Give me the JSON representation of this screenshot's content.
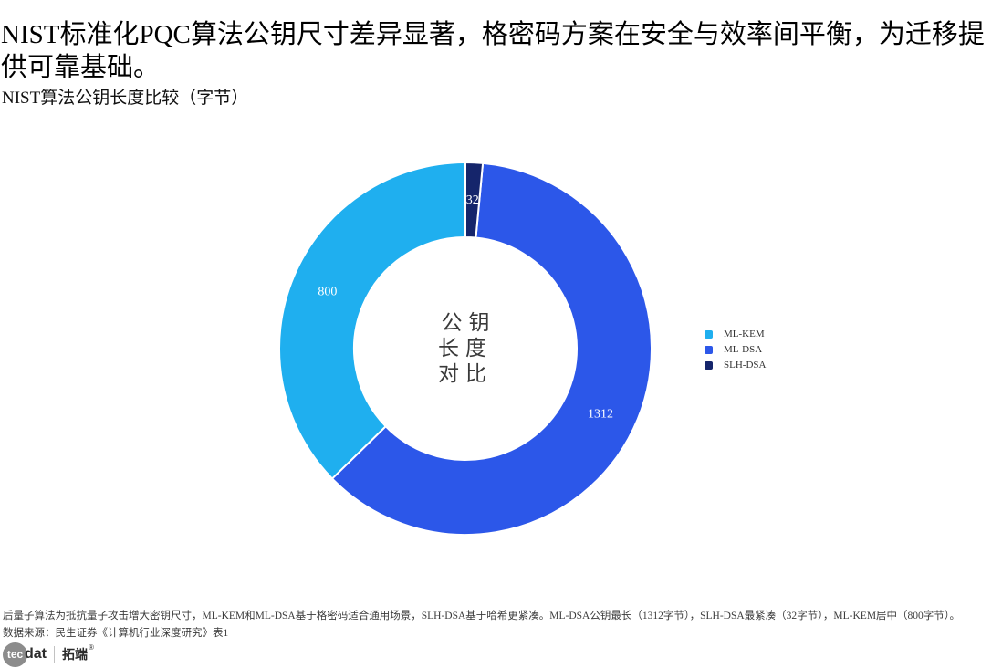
{
  "header": {
    "title": "NIST标准化PQC算法公钥尺寸差异显著，格密码方案在安全与效率间平衡，为迁移提供可靠基础。",
    "subtitle": "NIST算法公钥长度比较（字节）"
  },
  "chart_data": {
    "type": "pie",
    "subtype": "donut",
    "title": "NIST算法公钥长度比较（字节）",
    "unit": "字节",
    "categories": [
      "ML-KEM",
      "ML-DSA",
      "SLH-DSA"
    ],
    "values": [
      800,
      1312,
      32
    ],
    "data_labels": [
      "800",
      "1312",
      "32"
    ],
    "colors": [
      "#1FAFEF",
      "#2C57E9",
      "#15256B"
    ],
    "label_color": "#ffffff",
    "center_label": "公钥\n长度\n对比",
    "start_angle_deg": 90,
    "direction": "counterclockwise",
    "inner_radius_ratio": 0.6,
    "segment_border_color": "#ffffff",
    "legend_position": "right"
  },
  "legend": {
    "items": [
      {
        "label": "ML-KEM",
        "color": "#1FAFEF"
      },
      {
        "label": "ML-DSA",
        "color": "#2C57E9"
      },
      {
        "label": "SLH-DSA",
        "color": "#15256B"
      }
    ]
  },
  "footer": {
    "note": "后量子算法为抵抗量子攻击增大密钥尺寸，ML-KEM和ML-DSA基于格密码适合通用场景，SLH-DSA基于哈希更紧凑。ML-DSA公钥最长（1312字节），SLH-DSA最紧凑（32字节），ML-KEM居中（800字节）。",
    "source": "数据来源：民生证券《计算机行业深度研究》表1",
    "logo": {
      "tec": "tec",
      "dat": "dat",
      "brand": "拓端",
      "reg": "®"
    }
  }
}
